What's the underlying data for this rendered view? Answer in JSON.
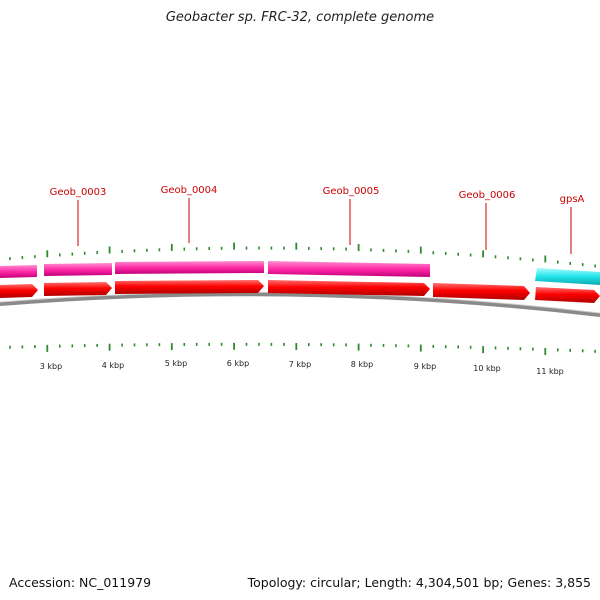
{
  "title": "Geobacter sp. FRC-32, complete genome",
  "footer": {
    "accession": "Accession: NC_011979",
    "summary": "Topology: circular; Length: 4,304,501 bp; Genes: 3,855"
  },
  "colors": {
    "cds": "#ff0000",
    "pink": "#ff2aa6",
    "cyan": "#22e5ea",
    "backbone": "#8a8a8a",
    "tick": "#2f8a2f",
    "label": "#cc0000"
  },
  "scale_labels": [
    "3 kbp",
    "4 kbp",
    "5 kbp",
    "6 kbp",
    "7 kbp",
    "8 kbp",
    "9 kbp",
    "10 kbp",
    "11 kbp"
  ],
  "gene_labels": [
    "Geob_0003",
    "Geob_0004",
    "Geob_0005",
    "Geob_0006",
    "gpsA"
  ]
}
